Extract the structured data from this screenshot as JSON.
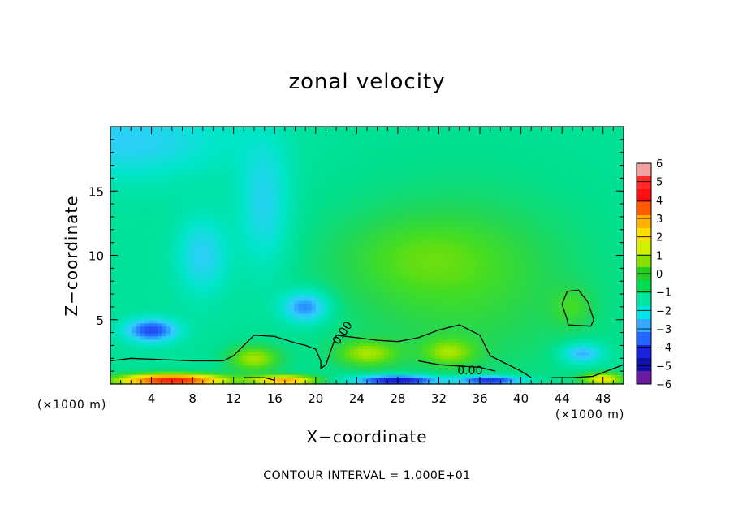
{
  "chart_data": {
    "type": "heatmap",
    "title": "zonal velocity",
    "xlabel": "X−coordinate",
    "ylabel": "Z−coordinate",
    "x_unit_label": "(×1000 m)",
    "xlim": [
      0,
      50
    ],
    "ylim": [
      0,
      20
    ],
    "x_ticks": [
      4,
      8,
      12,
      16,
      20,
      24,
      28,
      32,
      36,
      40,
      44,
      48
    ],
    "y_ticks": [
      5,
      10,
      15
    ],
    "footer": "CONTOUR INTERVAL = 1.000E+01",
    "contour_level_label": "0.00",
    "colorbar": {
      "levels": [
        6,
        5,
        4,
        3,
        2,
        1,
        0,
        -1,
        -2,
        -3,
        -4,
        -5,
        -6
      ],
      "labels": [
        "6",
        "5",
        "4",
        "3",
        "2",
        "1",
        "0",
        "−1",
        "−2",
        "−3",
        "−4",
        "−5",
        "−6"
      ],
      "colors": [
        "#f2a0a0",
        "#ff2a2a",
        "#ff1010",
        "#ff5a00",
        "#ffb000",
        "#ffdd00",
        "#d2f000",
        "#88e000",
        "#22cc22",
        "#00dd55",
        "#00e6a0",
        "#00e6e6",
        "#33aaff",
        "#2266ff",
        "#1a22dd",
        "#1010aa",
        "#6a1aa0"
      ]
    },
    "colormap_stops": [
      {
        "v": -6,
        "color": "#6a1aa0"
      },
      {
        "v": -5,
        "color": "#1010aa"
      },
      {
        "v": -4,
        "color": "#1a22dd"
      },
      {
        "v": -3,
        "color": "#2266ff"
      },
      {
        "v": -2,
        "color": "#33ccff"
      },
      {
        "v": -1.2,
        "color": "#00e6c8"
      },
      {
        "v": -0.5,
        "color": "#00e090"
      },
      {
        "v": 0,
        "color": "#22d655"
      },
      {
        "v": 0.5,
        "color": "#44dd22"
      },
      {
        "v": 1,
        "color": "#88e000"
      },
      {
        "v": 1.6,
        "color": "#d2f000"
      },
      {
        "v": 2.2,
        "color": "#ffdd00"
      },
      {
        "v": 3,
        "color": "#ffb000"
      },
      {
        "v": 4,
        "color": "#ff5a00"
      },
      {
        "v": 5,
        "color": "#ff1010"
      },
      {
        "v": 6,
        "color": "#f2a0a0"
      }
    ],
    "field_features": [
      {
        "x": 1.5,
        "z": 19,
        "value": -1.3,
        "sx": 10,
        "sz": 3
      },
      {
        "x": 4,
        "z": 4.2,
        "value": -2.8,
        "sx": 2.5,
        "sz": 0.9
      },
      {
        "x": 19,
        "z": 6.0,
        "value": -2.2,
        "sx": 2.2,
        "sz": 1.2
      },
      {
        "x": 9,
        "z": 10,
        "value": -1.3,
        "sx": 2.5,
        "sz": 3
      },
      {
        "x": 15,
        "z": 14,
        "value": -1.2,
        "sx": 2.5,
        "sz": 5
      },
      {
        "x": 30,
        "z": 10,
        "value": 0.6,
        "sx": 8,
        "sz": 3
      },
      {
        "x": 45,
        "z": 6,
        "value": 0.7,
        "sx": 2,
        "sz": 1.5
      },
      {
        "x": 14,
        "z": 2,
        "value": 1.8,
        "sx": 2.5,
        "sz": 1
      },
      {
        "x": 25,
        "z": 2.4,
        "value": 1.6,
        "sx": 3,
        "sz": 1
      },
      {
        "x": 33,
        "z": 2.5,
        "value": 1.4,
        "sx": 2.5,
        "sz": 1
      },
      {
        "x": 6,
        "z": 0.3,
        "value": 5.5,
        "sx": 5,
        "sz": 0.5
      },
      {
        "x": 17,
        "z": 0.3,
        "value": 3.5,
        "sx": 3,
        "sz": 0.4
      },
      {
        "x": 28,
        "z": 0.3,
        "value": -4,
        "sx": 4,
        "sz": 0.4
      },
      {
        "x": 37,
        "z": 0.3,
        "value": -3.5,
        "sx": 3,
        "sz": 0.35
      },
      {
        "x": 46,
        "z": 2.4,
        "value": -1.8,
        "sx": 2,
        "sz": 0.8
      },
      {
        "x": 48,
        "z": 0.4,
        "value": 2.5,
        "sx": 2,
        "sz": 0.5
      }
    ],
    "zero_contours": [
      {
        "closed": false,
        "points": [
          [
            0,
            1.8
          ],
          [
            2,
            2.0
          ],
          [
            5,
            1.9
          ],
          [
            8,
            1.8
          ],
          [
            11,
            1.8
          ],
          [
            12,
            2.2
          ],
          [
            13,
            3.0
          ],
          [
            14,
            3.8
          ],
          [
            16,
            3.7
          ],
          [
            18,
            3.2
          ],
          [
            19,
            3.0
          ],
          [
            20,
            2.7
          ],
          [
            20.5,
            1.8
          ],
          [
            20.5,
            1.2
          ],
          [
            21,
            1.5
          ],
          [
            22,
            3.8
          ],
          [
            24,
            3.6
          ],
          [
            26,
            3.4
          ],
          [
            28,
            3.3
          ],
          [
            30,
            3.6
          ],
          [
            32,
            4.2
          ],
          [
            34,
            4.6
          ],
          [
            36,
            3.8
          ],
          [
            37,
            2.2
          ],
          [
            38,
            1.8
          ],
          [
            40,
            1.0
          ],
          [
            41,
            0.5
          ]
        ]
      },
      {
        "closed": false,
        "points": [
          [
            30,
            1.8
          ],
          [
            32,
            1.5
          ],
          [
            34,
            1.4
          ],
          [
            36,
            1.3
          ],
          [
            37.5,
            1.0
          ]
        ]
      },
      {
        "closed": false,
        "points": [
          [
            13,
            0.5
          ],
          [
            15,
            0.5
          ],
          [
            16,
            0.3
          ]
        ]
      },
      {
        "closed": false,
        "points": [
          [
            43,
            0.5
          ],
          [
            45,
            0.5
          ],
          [
            47,
            0.6
          ],
          [
            49,
            1.2
          ],
          [
            50,
            1.5
          ]
        ]
      },
      {
        "closed": true,
        "points": [
          [
            44.5,
            5.0
          ],
          [
            44.0,
            6.2
          ],
          [
            44.5,
            7.2
          ],
          [
            45.6,
            7.3
          ],
          [
            46.5,
            6.4
          ],
          [
            47.1,
            5.0
          ],
          [
            46.8,
            4.5
          ],
          [
            44.6,
            4.6
          ]
        ]
      }
    ]
  }
}
